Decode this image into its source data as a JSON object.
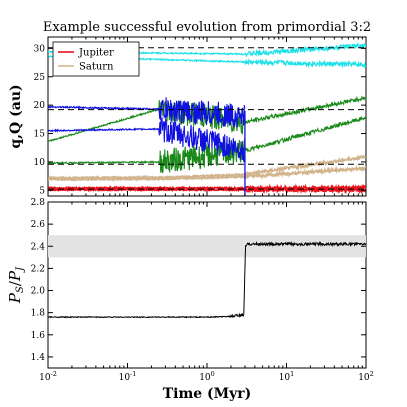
{
  "chart_data": [
    {
      "type": "line",
      "title": "Example successful evolution from primordial 3:2",
      "xlabel": "",
      "ylabel": "q,Q (au)",
      "xscale": "log",
      "xlim": [
        0.01,
        100
      ],
      "ylim": [
        4,
        32
      ],
      "yticks": [
        5,
        10,
        15,
        20,
        25,
        30
      ],
      "ytick_labels": [
        "5",
        "10",
        "15",
        "20",
        "25",
        "30"
      ],
      "grid": false,
      "legend": {
        "placement": "top-left",
        "entries": [
          {
            "label": "Jupiter",
            "color": "#e8141c"
          },
          {
            "label": "Saturn",
            "color": "#d2b48c"
          }
        ]
      },
      "reference_lines_dashed": [
        5.2,
        9.6,
        19.2,
        30.1
      ],
      "transition_time_myr": 3.0,
      "series": [
        {
          "name": "Jupiter",
          "color": "#e8141c",
          "x": [
            0.01,
            3.0,
            100
          ],
          "q": [
            5.1,
            5.1,
            5.0
          ],
          "Q": [
            5.4,
            5.4,
            5.5
          ]
        },
        {
          "name": "Saturn",
          "color": "#d2b48c",
          "x": [
            0.01,
            0.3,
            3.0,
            100
          ],
          "q": [
            6.9,
            7.0,
            7.4,
            8.9
          ],
          "Q": [
            7.2,
            7.3,
            7.8,
            10.9
          ]
        },
        {
          "color": "#1b8a1b",
          "x": [
            0.01,
            0.25,
            3.0,
            100
          ],
          "q": [
            9.8,
            10.0,
            12.0,
            17.8
          ],
          "Q": [
            13.6,
            19.3,
            17.0,
            21.3
          ]
        },
        {
          "color": "#1010e0",
          "x": [
            0.01,
            0.25,
            3.0,
            100
          ],
          "q": [
            15.5,
            15.8,
            12.0,
            null
          ],
          "Q": [
            19.7,
            19.3,
            18.0,
            null
          ]
        },
        {
          "color": "#1ee1e8",
          "x": [
            0.01,
            3.0,
            100
          ],
          "q": [
            28.6,
            27.6,
            27.1
          ],
          "Q": [
            29.4,
            29.0,
            30.5
          ]
        }
      ]
    },
    {
      "type": "line",
      "xlabel": "Time (Myr)",
      "ylabel": "PS/PJ",
      "ylabel_main": "P",
      "ylabel_sub_S": "S",
      "ylabel_slash": "/",
      "ylabel_sub_J": "J",
      "xscale": "log",
      "xlim": [
        0.01,
        100
      ],
      "ylim": [
        1.3,
        2.8
      ],
      "yticks": [
        1.4,
        1.6,
        1.8,
        2.0,
        2.2,
        2.4,
        2.6,
        2.8
      ],
      "ytick_labels": [
        "1.4",
        "1.6",
        "1.8",
        "2.0",
        "2.2",
        "2.4",
        "2.6",
        "2.8"
      ],
      "xtick_labels": [
        {
          "base": "10",
          "exp": "-2"
        },
        {
          "base": "10",
          "exp": "-1"
        },
        {
          "base": "10",
          "exp": "0"
        },
        {
          "base": "10",
          "exp": "1"
        },
        {
          "base": "10",
          "exp": "2"
        }
      ],
      "shaded_band": [
        2.3,
        2.5
      ],
      "grid": false,
      "series": [
        {
          "color": "#000000",
          "x": [
            0.01,
            0.1,
            1.0,
            2.0,
            2.9,
            3.05,
            3.2,
            10,
            100
          ],
          "y": [
            1.76,
            1.76,
            1.76,
            1.765,
            1.78,
            2.4,
            2.42,
            2.42,
            2.42
          ]
        }
      ]
    }
  ]
}
